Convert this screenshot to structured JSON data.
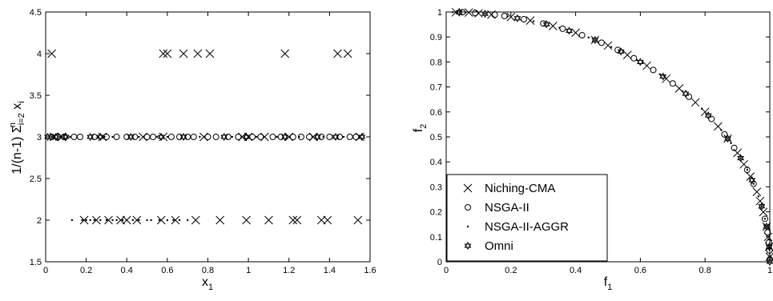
{
  "chart_data": [
    {
      "type": "scatter",
      "xlim": [
        0,
        1.6
      ],
      "ylim": [
        1.5,
        4.5
      ],
      "x_ticks": [
        "0",
        "0.2",
        "0.4",
        "0.6",
        "0.8",
        "1",
        "1.2",
        "1.4",
        "1.6"
      ],
      "y_ticks": [
        "1.5",
        "2",
        "2.5",
        "3",
        "3.5",
        "4",
        "4.5"
      ],
      "xlabel": {
        "main": "x",
        "sub": "1"
      },
      "ylabel": {
        "prefix": "1/(n-1) Σ",
        "sub": "i=2",
        "sup": "n",
        "var": "x",
        "var_sub": "i"
      },
      "grid": false,
      "series": [
        {
          "name": "Niching-CMA",
          "marker": "x",
          "points": [
            [
              0.03,
              4
            ],
            [
              0.58,
              4
            ],
            [
              0.6,
              4
            ],
            [
              0.68,
              4
            ],
            [
              0.75,
              4
            ],
            [
              0.81,
              4
            ],
            [
              1.18,
              4
            ],
            [
              1.44,
              4
            ],
            [
              1.49,
              4
            ],
            [
              0.19,
              2
            ],
            [
              0.25,
              2
            ],
            [
              0.31,
              2
            ],
            [
              0.37,
              2
            ],
            [
              0.4,
              2
            ],
            [
              0.45,
              2
            ],
            [
              0.57,
              2
            ],
            [
              0.64,
              2
            ],
            [
              0.74,
              2
            ],
            [
              0.86,
              2
            ],
            [
              0.99,
              2
            ],
            [
              1.1,
              2
            ],
            [
              1.22,
              2
            ],
            [
              1.24,
              2
            ],
            [
              1.36,
              2
            ],
            [
              1.39,
              2
            ],
            [
              1.54,
              2
            ],
            [
              0.04,
              3
            ],
            [
              0.08,
              3
            ],
            [
              0.28,
              3
            ],
            [
              0.48,
              3
            ],
            [
              0.58,
              3
            ],
            [
              0.78,
              3
            ],
            [
              0.97,
              3
            ],
            [
              1.0,
              3
            ],
            [
              1.08,
              3
            ],
            [
              1.2,
              3
            ],
            [
              1.32,
              3
            ],
            [
              1.55,
              3
            ]
          ]
        },
        {
          "name": "NSGA-II",
          "marker": "o",
          "points": [
            [
              0.03,
              3
            ],
            [
              0.06,
              3
            ],
            [
              0.09,
              3
            ],
            [
              0.14,
              3
            ],
            [
              0.17,
              3
            ],
            [
              0.24,
              3
            ],
            [
              0.3,
              3
            ],
            [
              0.35,
              3
            ],
            [
              0.4,
              3
            ],
            [
              0.44,
              3
            ],
            [
              0.5,
              3
            ],
            [
              0.53,
              3
            ],
            [
              0.62,
              3
            ],
            [
              0.66,
              3
            ],
            [
              0.7,
              3
            ],
            [
              0.73,
              3
            ],
            [
              0.8,
              3
            ],
            [
              0.84,
              3
            ],
            [
              0.9,
              3
            ],
            [
              0.95,
              3
            ],
            [
              1.02,
              3
            ],
            [
              1.06,
              3
            ],
            [
              1.12,
              3
            ],
            [
              1.16,
              3
            ],
            [
              1.22,
              3
            ],
            [
              1.26,
              3
            ],
            [
              1.3,
              3
            ],
            [
              1.36,
              3
            ],
            [
              1.4,
              3
            ],
            [
              1.45,
              3
            ],
            [
              1.5,
              3
            ],
            [
              1.53,
              3
            ]
          ]
        },
        {
          "name": "NSGA-II-AGGR",
          "marker": "dot",
          "points": [
            [
              0.13,
              2
            ],
            [
              0.18,
              2
            ],
            [
              0.2,
              2
            ],
            [
              0.22,
              2
            ],
            [
              0.24,
              2
            ],
            [
              0.27,
              2
            ],
            [
              0.3,
              2
            ],
            [
              0.33,
              2
            ],
            [
              0.35,
              2
            ],
            [
              0.38,
              2
            ],
            [
              0.4,
              2
            ],
            [
              0.43,
              2
            ],
            [
              0.46,
              2
            ],
            [
              0.5,
              2
            ],
            [
              0.52,
              2
            ],
            [
              0.56,
              2
            ],
            [
              0.6,
              2
            ],
            [
              0.63,
              2
            ],
            [
              0.66,
              2
            ],
            [
              0.7,
              2
            ],
            [
              0.03,
              3
            ],
            [
              0.07,
              3
            ],
            [
              0.12,
              3
            ],
            [
              0.26,
              3
            ],
            [
              0.29,
              3
            ],
            [
              0.33,
              3
            ],
            [
              0.46,
              3
            ],
            [
              0.55,
              3
            ],
            [
              0.6,
              3
            ],
            [
              0.76,
              3
            ],
            [
              0.92,
              3
            ],
            [
              1.04,
              3
            ],
            [
              1.14,
              3
            ],
            [
              1.25,
              3
            ],
            [
              1.37,
              3
            ],
            [
              1.47,
              3
            ]
          ]
        },
        {
          "name": "Omni",
          "marker": "star",
          "points": [
            [
              0.01,
              3
            ],
            [
              0.05,
              3
            ],
            [
              0.1,
              3
            ],
            [
              0.22,
              3
            ],
            [
              0.27,
              3
            ],
            [
              0.42,
              3
            ],
            [
              0.57,
              3
            ],
            [
              0.68,
              3
            ],
            [
              0.88,
              3
            ],
            [
              0.99,
              3
            ],
            [
              1.18,
              3
            ],
            [
              1.34,
              3
            ],
            [
              1.43,
              3
            ],
            [
              1.56,
              3
            ]
          ]
        }
      ]
    },
    {
      "type": "scatter",
      "xlim": [
        0,
        1
      ],
      "ylim": [
        0,
        1
      ],
      "x_ticks": [
        "0",
        "0.2",
        "0.4",
        "0.6",
        "0.8",
        "1"
      ],
      "y_ticks": [
        "0",
        "0.1",
        "0.2",
        "0.3",
        "0.4",
        "0.5",
        "0.6",
        "0.7",
        "0.8",
        "0.9",
        "1"
      ],
      "xlabel": {
        "main": "f",
        "sub": "1"
      },
      "ylabel": {
        "main": "f",
        "sub": "2"
      },
      "grid": false,
      "legend": {
        "placement": "lower-left",
        "entries": [
          {
            "label": "Niching-CMA",
            "marker": "x"
          },
          {
            "label": "NSGA-II",
            "marker": "o"
          },
          {
            "label": "NSGA-II-AGGR",
            "marker": "dot"
          },
          {
            "label": "Omni",
            "marker": "star"
          }
        ]
      },
      "series": [
        {
          "name": "Niching-CMA",
          "marker": "x",
          "points": [
            [
              0.03,
              0.999
            ],
            [
              0.07,
              0.998
            ],
            [
              0.1,
              0.995
            ],
            [
              0.14,
              0.99
            ],
            [
              0.2,
              0.98
            ],
            [
              0.26,
              0.966
            ],
            [
              0.33,
              0.944
            ],
            [
              0.4,
              0.917
            ],
            [
              0.46,
              0.888
            ],
            [
              0.5,
              0.866
            ],
            [
              0.56,
              0.828
            ],
            [
              0.62,
              0.785
            ],
            [
              0.68,
              0.733
            ],
            [
              0.72,
              0.694
            ],
            [
              0.77,
              0.638
            ],
            [
              0.8,
              0.6
            ],
            [
              0.84,
              0.542
            ],
            [
              0.87,
              0.493
            ],
            [
              0.9,
              0.436
            ],
            [
              0.92,
              0.39
            ],
            [
              0.94,
              0.341
            ],
            [
              0.96,
              0.28
            ],
            [
              0.97,
              0.243
            ],
            [
              0.98,
              0.199
            ],
            [
              0.99,
              0.141
            ],
            [
              0.995,
              0.1
            ],
            [
              0.998,
              0.06
            ],
            [
              1.0,
              0.02
            ]
          ]
        },
        {
          "name": "NSGA-II",
          "marker": "o",
          "points": [
            [
              0.05,
              0.999
            ],
            [
              0.09,
              0.996
            ],
            [
              0.15,
              0.989
            ],
            [
              0.18,
              0.984
            ],
            [
              0.24,
              0.971
            ],
            [
              0.3,
              0.954
            ],
            [
              0.36,
              0.933
            ],
            [
              0.42,
              0.907
            ],
            [
              0.48,
              0.877
            ],
            [
              0.53,
              0.848
            ],
            [
              0.58,
              0.815
            ],
            [
              0.64,
              0.768
            ],
            [
              0.7,
              0.714
            ],
            [
              0.75,
              0.661
            ],
            [
              0.82,
              0.572
            ],
            [
              0.86,
              0.51
            ],
            [
              0.89,
              0.456
            ],
            [
              0.93,
              0.368
            ],
            [
              0.95,
              0.312
            ],
            [
              0.985,
              0.172
            ],
            [
              0.993,
              0.118
            ],
            [
              0.997,
              0.077
            ],
            [
              0.999,
              0.045
            ],
            [
              1.0,
              0.01
            ]
          ]
        },
        {
          "name": "NSGA-II-AGGR",
          "marker": "dot",
          "points": [
            [
              0.02,
              0.999
            ],
            [
              0.06,
              0.998
            ],
            [
              0.12,
              0.993
            ],
            [
              0.19,
              0.982
            ],
            [
              0.27,
              0.963
            ],
            [
              0.35,
              0.937
            ],
            [
              0.44,
              0.898
            ],
            [
              0.51,
              0.86
            ],
            [
              0.59,
              0.807
            ],
            [
              0.66,
              0.751
            ],
            [
              0.73,
              0.683
            ],
            [
              0.79,
              0.613
            ],
            [
              0.85,
              0.527
            ],
            [
              0.88,
              0.475
            ],
            [
              0.91,
              0.415
            ],
            [
              0.93,
              0.368
            ],
            [
              0.95,
              0.312
            ],
            [
              0.965,
              0.262
            ],
            [
              0.975,
              0.222
            ],
            [
              0.985,
              0.172
            ],
            [
              0.99,
              0.141
            ],
            [
              0.996,
              0.09
            ],
            [
              0.999,
              0.05
            ]
          ]
        },
        {
          "name": "Omni",
          "marker": "star",
          "points": [
            [
              0.04,
              0.999
            ],
            [
              0.12,
              0.993
            ],
            [
              0.22,
              0.975
            ],
            [
              0.31,
              0.951
            ],
            [
              0.38,
              0.925
            ],
            [
              0.46,
              0.888
            ],
            [
              0.54,
              0.842
            ],
            [
              0.6,
              0.8
            ],
            [
              0.67,
              0.742
            ],
            [
              0.74,
              0.673
            ],
            [
              0.81,
              0.586
            ],
            [
              0.87,
              0.493
            ],
            [
              0.91,
              0.415
            ],
            [
              0.945,
              0.327
            ],
            [
              0.975,
              0.222
            ],
            [
              0.99,
              0.141
            ],
            [
              0.998,
              0.06
            ],
            [
              1.0,
              0.0
            ]
          ]
        }
      ]
    }
  ]
}
